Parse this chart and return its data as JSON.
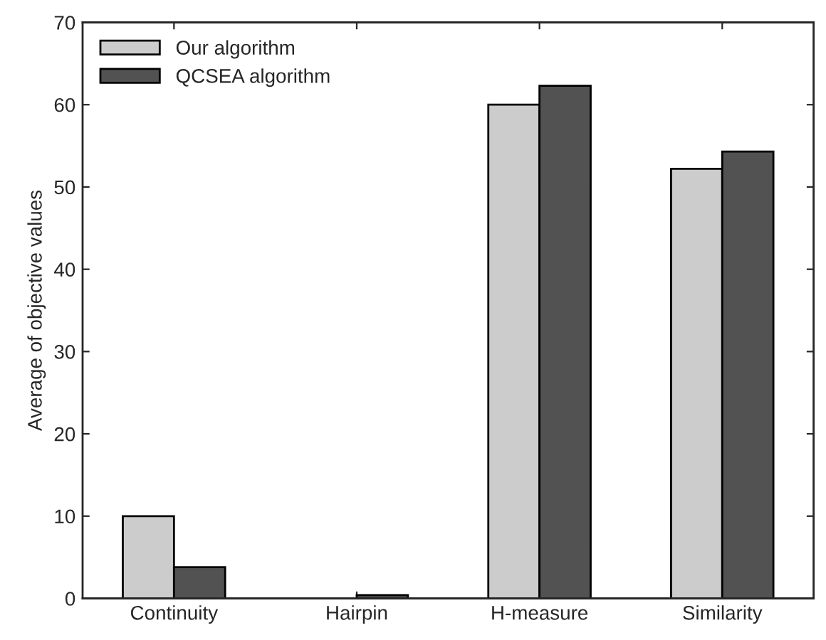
{
  "chart_data": {
    "type": "bar",
    "ylabel": "Average of objective values",
    "categories": [
      "Continuity",
      "Hairpin",
      "H-measure",
      "Similarity"
    ],
    "series": [
      {
        "name": "Our algorithm",
        "color": "#cccccc",
        "values": [
          10.0,
          0.0,
          60.0,
          52.2
        ]
      },
      {
        "name": "QCSEA algorithm",
        "color": "#525252",
        "values": [
          3.8,
          0.4,
          62.3,
          54.3
        ]
      }
    ],
    "ylim": [
      0,
      70
    ],
    "yticks": [
      0,
      10,
      20,
      30,
      40,
      50,
      60,
      70
    ],
    "grid": false,
    "legend": "top left"
  }
}
